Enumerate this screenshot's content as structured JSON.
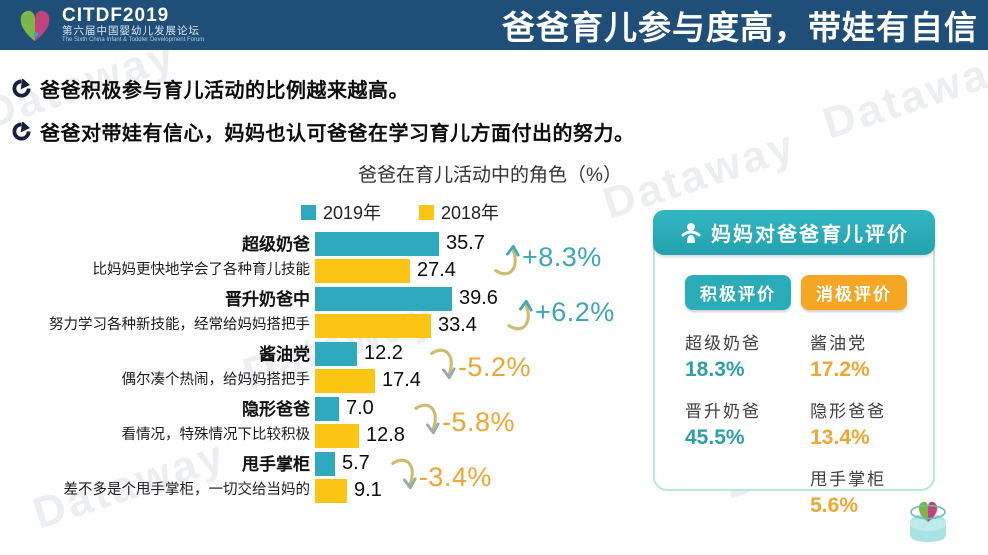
{
  "header": {
    "logo": {
      "brand": "CITDF2019",
      "subtitle_cn": "第六届中国婴幼儿发展论坛",
      "subtitle_en": "The Sixth China Infant & Toddler Development Forum"
    },
    "title": "爸爸育儿参与度高，带娃有自信",
    "bg_color": "#1F4E79"
  },
  "bullets": [
    "爸爸积极参与育儿活动的比例越来越高。",
    "爸爸对带娃有信心，妈妈也认可爸爸在学习育儿方面付出的努力。"
  ],
  "chart_data": {
    "type": "bar",
    "orientation": "horizontal",
    "title": "爸爸在育儿活动中的角色（%）",
    "legend": [
      {
        "label": "2019年",
        "color": "#2EA9BD"
      },
      {
        "label": "2018年",
        "color": "#FDC513"
      }
    ],
    "categories": [
      "超级奶爸",
      "晋升奶爸中",
      "酱油党",
      "隐形爸爸",
      "甩手掌柜"
    ],
    "category_notes": [
      "比妈妈更快地学会了各种育儿技能",
      "努力学习各种新技能，经常给妈妈搭把手",
      "偶尔凑个热闹，给妈妈搭把手",
      "看情况，特殊情况下比较积极",
      "差不多是个甩手掌柜，一切交给当妈的"
    ],
    "series": [
      {
        "name": "2019年",
        "values": [
          35.7,
          39.6,
          12.2,
          7.0,
          5.7
        ]
      },
      {
        "name": "2018年",
        "values": [
          27.4,
          33.4,
          17.4,
          12.8,
          9.1
        ]
      }
    ],
    "changes": [
      "+8.3%",
      "+6.2%",
      "-5.2%",
      "-5.8%",
      "-3.4%"
    ],
    "xlim": [
      0,
      45
    ],
    "colors": {
      "positive_change": "#3AA7B3",
      "negative_change": "#F0A532"
    }
  },
  "evaluation_panel": {
    "title": "妈妈对爸爸育儿评价",
    "positive": {
      "label": "积极评价",
      "color": "#2BACB9",
      "items": [
        {
          "name": "超级奶爸",
          "value": "18.3%"
        },
        {
          "name": "晋升奶爸",
          "value": "45.5%"
        }
      ]
    },
    "negative": {
      "label": "消极评价",
      "color": "#F5A623",
      "items": [
        {
          "name": "酱油党",
          "value": "17.2%"
        },
        {
          "name": "隐形爸爸",
          "value": "13.4%"
        },
        {
          "name": "甩手掌柜",
          "value": "5.6%"
        }
      ]
    }
  },
  "watermark_text": "Dataway"
}
